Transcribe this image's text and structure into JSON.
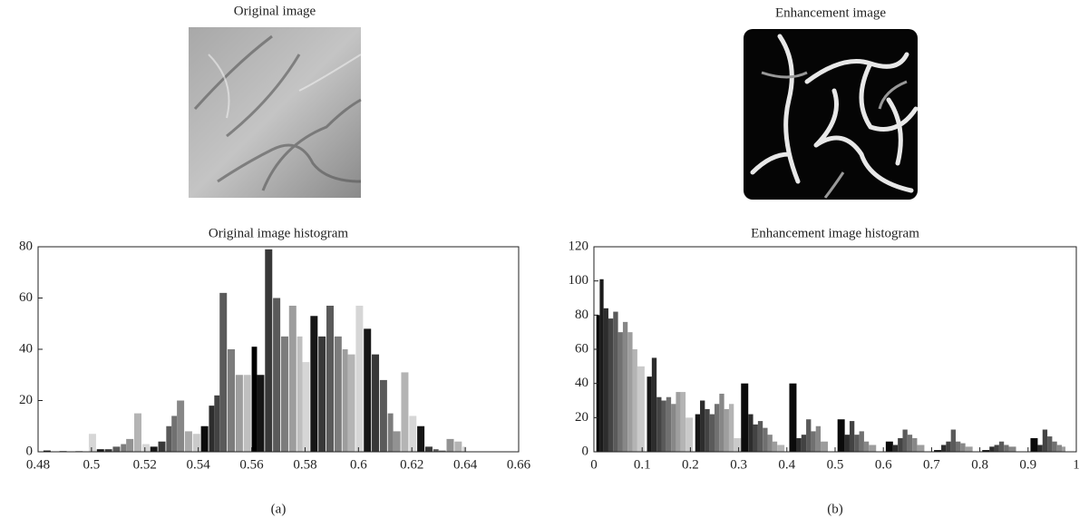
{
  "images": [
    {
      "title": "Original image"
    },
    {
      "title": "Enhancement image"
    }
  ],
  "panels": [
    "(a)",
    "(b)"
  ],
  "chart_data": [
    {
      "type": "bar",
      "title": "Original image histogram",
      "x": [
        0.482,
        0.488,
        0.494,
        0.499,
        0.502,
        0.505,
        0.508,
        0.511,
        0.513,
        0.516,
        0.519,
        0.522,
        0.525,
        0.528,
        0.53,
        0.532,
        0.535,
        0.538,
        0.541,
        0.544,
        0.546,
        0.548,
        0.551,
        0.554,
        0.557,
        0.56,
        0.562,
        0.565,
        0.568,
        0.571,
        0.574,
        0.577,
        0.579,
        0.582,
        0.585,
        0.588,
        0.591,
        0.594,
        0.596,
        0.599,
        0.602,
        0.605,
        0.608,
        0.611,
        0.613,
        0.616,
        0.619,
        0.622,
        0.625,
        0.628,
        0.63,
        0.633,
        0.636,
        0.639
      ],
      "values": [
        0.5,
        0.3,
        0.3,
        7,
        1,
        1,
        2,
        3,
        5,
        15,
        3,
        2,
        4,
        10,
        14,
        20,
        8,
        7,
        10,
        18,
        22,
        62,
        40,
        30,
        30,
        41,
        30,
        79,
        60,
        45,
        57,
        45,
        35,
        53,
        45,
        57,
        45,
        40,
        38,
        57,
        48,
        38,
        28,
        15,
        8,
        31,
        14,
        10,
        2,
        1,
        0.5,
        5,
        4,
        2
      ],
      "xlim": [
        0.48,
        0.66
      ],
      "xticks": [
        0.48,
        0.5,
        0.52,
        0.54,
        0.56,
        0.58,
        0.6,
        0.62,
        0.64,
        0.66
      ],
      "ylim": [
        0,
        80
      ],
      "yticks": [
        0,
        20,
        40,
        60,
        80
      ],
      "colormap": "gray"
    },
    {
      "type": "bar",
      "title": "Enhancement image histogram",
      "x": [
        0.005,
        0.012,
        0.02,
        0.03,
        0.04,
        0.05,
        0.06,
        0.07,
        0.08,
        0.09,
        0.11,
        0.12,
        0.13,
        0.14,
        0.15,
        0.16,
        0.17,
        0.18,
        0.19,
        0.21,
        0.22,
        0.23,
        0.24,
        0.25,
        0.26,
        0.27,
        0.28,
        0.29,
        0.305,
        0.32,
        0.33,
        0.34,
        0.35,
        0.36,
        0.37,
        0.38,
        0.405,
        0.42,
        0.43,
        0.44,
        0.45,
        0.46,
        0.47,
        0.505,
        0.52,
        0.53,
        0.54,
        0.55,
        0.56,
        0.57,
        0.605,
        0.62,
        0.63,
        0.64,
        0.65,
        0.66,
        0.67,
        0.705,
        0.72,
        0.73,
        0.74,
        0.75,
        0.76,
        0.77,
        0.805,
        0.82,
        0.83,
        0.84,
        0.85,
        0.86,
        0.905,
        0.92,
        0.93,
        0.94,
        0.95,
        0.96,
        0.97
      ],
      "values": [
        80,
        101,
        84,
        78,
        82,
        70,
        76,
        70,
        60,
        50,
        44,
        55,
        32,
        30,
        32,
        28,
        35,
        35,
        20,
        22,
        30,
        25,
        22,
        28,
        34,
        25,
        28,
        8,
        40,
        22,
        16,
        18,
        14,
        10,
        6,
        4,
        40,
        8,
        10,
        19,
        12,
        15,
        6,
        19,
        10,
        18,
        10,
        12,
        6,
        4,
        6,
        4,
        8,
        13,
        10,
        8,
        4,
        1,
        4,
        6,
        13,
        6,
        5,
        3,
        1,
        3,
        4,
        6,
        4,
        3,
        8,
        4,
        13,
        9,
        6,
        4,
        3
      ],
      "xlim": [
        0,
        1
      ],
      "xticks": [
        0,
        0.1,
        0.2,
        0.3,
        0.4,
        0.5,
        0.6,
        0.7,
        0.8,
        0.9,
        1
      ],
      "ylim": [
        0,
        120
      ],
      "yticks": [
        0,
        20,
        40,
        60,
        80,
        100,
        120
      ],
      "colormap": "gray"
    }
  ]
}
